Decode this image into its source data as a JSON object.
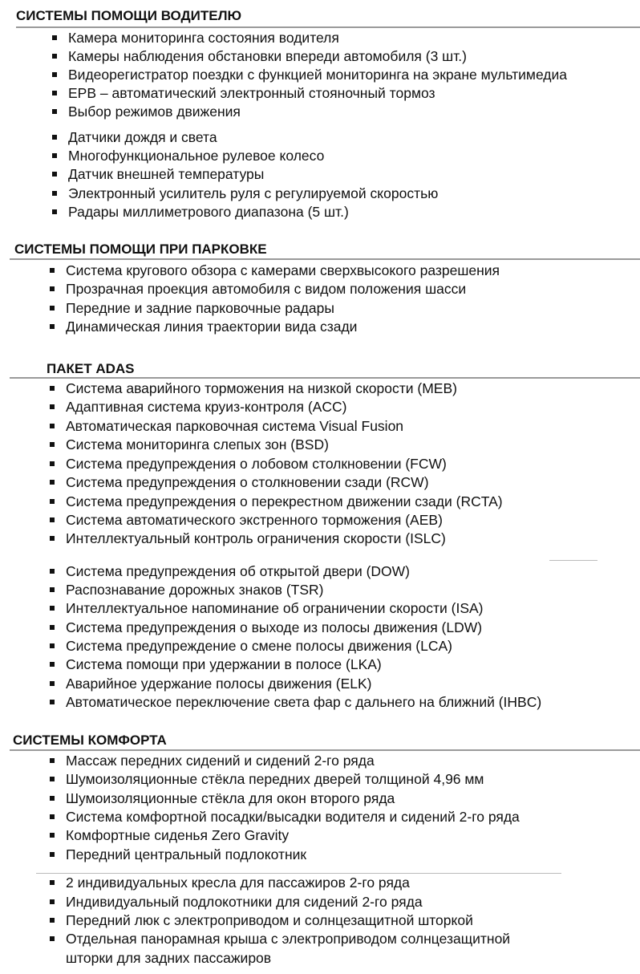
{
  "sections": [
    {
      "title": "СИСТЕМЫ ПОМОЩИ ВОДИТЕЛЮ",
      "items": [
        "Камера мониторинга состояния водителя",
        "Камеры наблюдения обстановки впереди автомобиля (3 шт.)",
        "Видеорегистратор поездки с функцией мониторинга на экране мультимедиа",
        "EPB – автоматический электронный стояночный тормоз",
        "Выбор режимов движения",
        "Датчики дождя и света",
        "Многофункциональное рулевое колесо",
        "Датчик внешней температуры",
        "Электронный усилитель руля с регулируемой скоростью",
        "Радары миллиметрового диапазона (5 шт.)"
      ]
    },
    {
      "title": "СИСТЕМЫ ПОМОЩИ ПРИ ПАРКОВКЕ",
      "items": [
        "Система кругового обзора с камерами сверхвысокого разрешения",
        "Прозрачная проекция автомобиля с видом положения шасси",
        "Передние и задние парковочные радары",
        "Динамическая линия траектории вида сзади"
      ]
    },
    {
      "title": "ПАКЕТ ADAS",
      "items": [
        "Система аварийного торможения на низкой скорости (MEB)",
        "Адаптивная система круиз-контроля (ACC)",
        "Автоматическая парковочная система Visual Fusion",
        "Система мониторинга слепых зон (BSD)",
        "Система предупреждения о лобовом столкновении (FCW)",
        "Система предупреждения о столкновении сзади (RCW)",
        "Система предупреждения о перекрестном движении сзади (RCTA)",
        "Система автоматического экстренного торможения (AEB)",
        "Интеллектуальный контроль ограничения скорости (ISLC)",
        "Система предупреждения об открытой двери (DOW)",
        "Распознавание дорожных знаков (TSR)",
        "Интеллектуальное напоминание об ограничении скорости (ISA)",
        "Система предупреждения о выходе из полосы движения (LDW)",
        "Система предупреждение о смене полосы движения (LCA)",
        "Система помощи при удержании в полосе (LKA)",
        "Аварийное удержание полосы движения (ELK)",
        "Автоматическое переключение света фар с дальнего на ближний (IHBC)"
      ]
    },
    {
      "title": "СИСТЕМЫ КОМФОРТА",
      "items": [
        "Массаж передних сидений и сидений 2-го ряда",
        "Шумоизоляционные стёкла передних дверей толщиной 4,96 мм",
        "Шумоизоляционные стёкла для окон второго ряда",
        "Система комфортной посадки/высадки водителя и сидений 2-го ряда",
        "Комфортные сиденья Zero Gravity",
        "Передний центральный подлокотник",
        "2 индивидуальных кресла для пассажиров 2-го ряда",
        "Индивидуальный подлокотники для сидений 2-го ряда",
        "Передний люк с электроприводом и солнцезащитной шторкой",
        "Отдельная панорамная крыша с электроприводом солнцезащитной",
        "шторки для задних пассажиров"
      ]
    }
  ]
}
